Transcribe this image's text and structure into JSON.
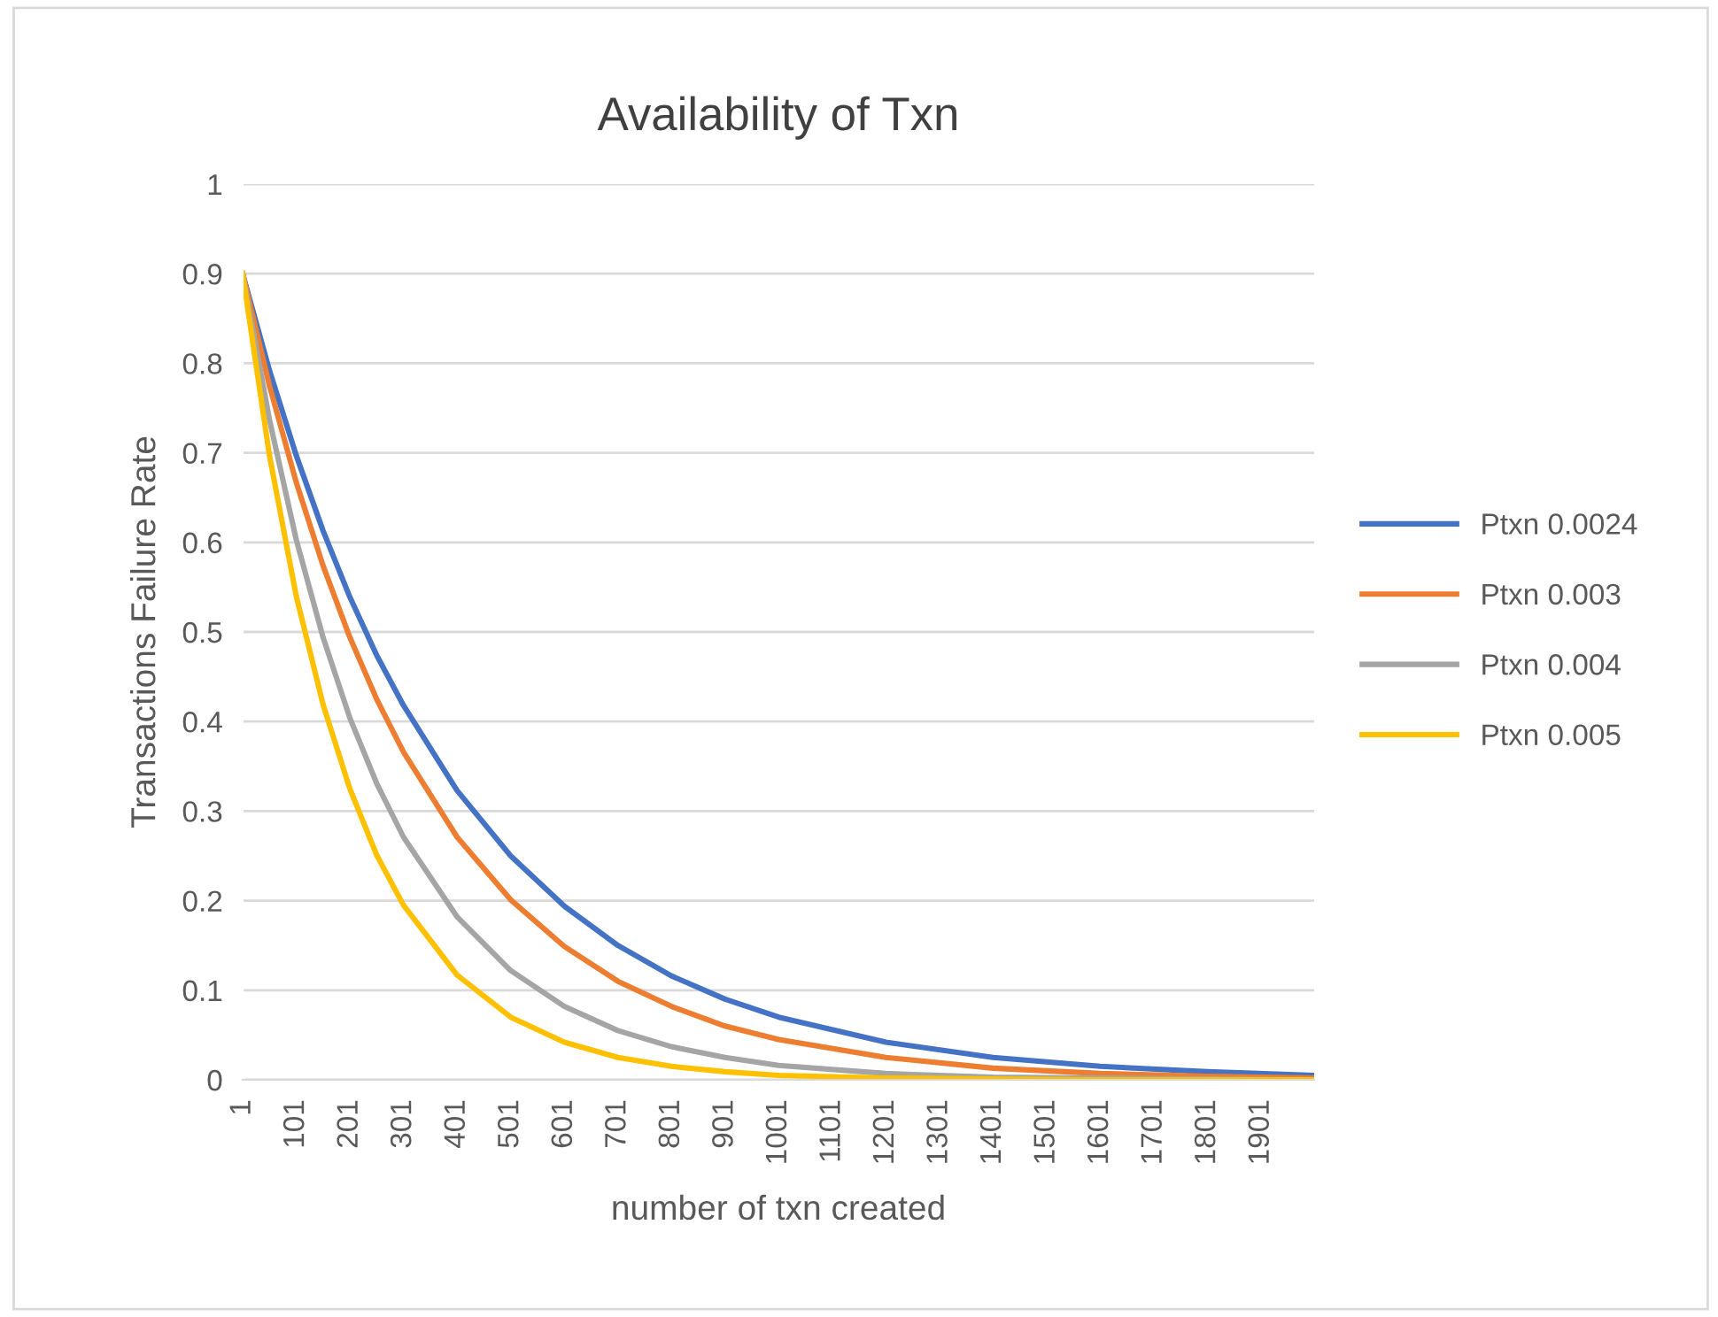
{
  "chart_data": {
    "type": "line",
    "title": "Availability of Txn",
    "xlabel": "number of txn created",
    "ylabel": "Transactions Failure Rate",
    "x": [
      1,
      51,
      101,
      151,
      201,
      251,
      301,
      401,
      501,
      601,
      701,
      801,
      901,
      1001,
      1201,
      1401,
      1601,
      1801,
      2000
    ],
    "series": [
      {
        "name": "Ptxn 0.0024",
        "color": "#4472c4",
        "values": [
          0.9,
          0.792,
          0.697,
          0.613,
          0.539,
          0.474,
          0.418,
          0.323,
          0.25,
          0.194,
          0.15,
          0.116,
          0.09,
          0.07,
          0.042,
          0.025,
          0.015,
          0.009,
          0.005
        ]
      },
      {
        "name": "Ptxn 0.003",
        "color": "#ed7d31",
        "values": [
          0.9,
          0.775,
          0.667,
          0.574,
          0.494,
          0.425,
          0.366,
          0.271,
          0.201,
          0.149,
          0.11,
          0.082,
          0.06,
          0.045,
          0.025,
          0.013,
          0.007,
          0.004,
          0.002
        ]
      },
      {
        "name": "Ptxn 0.004",
        "color": "#a5a5a5",
        "values": [
          0.9,
          0.737,
          0.603,
          0.494,
          0.404,
          0.331,
          0.271,
          0.182,
          0.122,
          0.082,
          0.055,
          0.037,
          0.025,
          0.016,
          0.007,
          0.003,
          0.002,
          0.001,
          0
        ]
      },
      {
        "name": "Ptxn 0.005",
        "color": "#ffc000",
        "values": [
          0.9,
          0.697,
          0.54,
          0.419,
          0.325,
          0.251,
          0.195,
          0.117,
          0.07,
          0.042,
          0.025,
          0.015,
          0.009,
          0.005,
          0.002,
          0.001,
          0,
          0,
          0
        ]
      }
    ],
    "xlim": [
      1,
      2000
    ],
    "xticks": [
      1,
      101,
      201,
      301,
      401,
      501,
      601,
      701,
      801,
      901,
      1001,
      1101,
      1201,
      1301,
      1401,
      1501,
      1601,
      1701,
      1801,
      1901
    ],
    "ylim": [
      0,
      1
    ],
    "yticks": [
      0,
      0.1,
      0.2,
      0.3,
      0.4,
      0.5,
      0.6,
      0.7,
      0.8,
      0.9,
      1
    ],
    "grid": "y",
    "legend": "right",
    "marker": "none",
    "line_style": "solid"
  }
}
